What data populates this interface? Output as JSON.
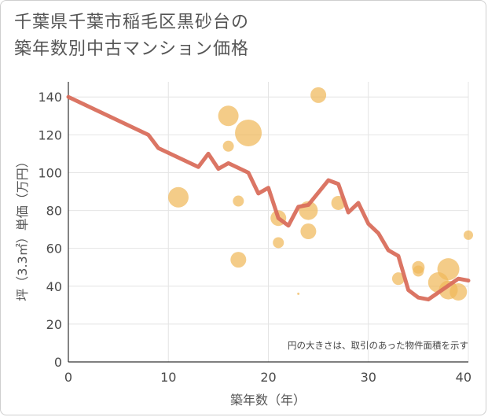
{
  "title_lines": [
    "千葉県千葉市稲毛区黒砂台の",
    "築年数別中古マンション価格"
  ],
  "note": "円の大きさは、取引のあった物件面積を示す",
  "colors": {
    "line": "#d96e5c",
    "bubble": "#f0b85a",
    "grid": "#e4e4e4"
  },
  "chart_data": {
    "type": "scatter",
    "xlabel": "築年数（年）",
    "ylabel": "坪（3.3㎡）単価（万円）",
    "xlim": [
      0,
      40
    ],
    "ylim": [
      0,
      148
    ],
    "xticks": [
      0,
      10,
      20,
      30,
      40
    ],
    "yticks": [
      0,
      20,
      40,
      60,
      80,
      100,
      120,
      140
    ],
    "grid": true,
    "bubbles": [
      {
        "x": 16,
        "y": 130,
        "size": 13
      },
      {
        "x": 18,
        "y": 121,
        "size": 17
      },
      {
        "x": 25,
        "y": 141,
        "size": 10
      },
      {
        "x": 16,
        "y": 114,
        "size": 7
      },
      {
        "x": 11,
        "y": 87,
        "size": 13
      },
      {
        "x": 17,
        "y": 85,
        "size": 7
      },
      {
        "x": 21,
        "y": 76,
        "size": 10
      },
      {
        "x": 24,
        "y": 80,
        "size": 12
      },
      {
        "x": 27,
        "y": 84,
        "size": 9
      },
      {
        "x": 24,
        "y": 69,
        "size": 10
      },
      {
        "x": 21,
        "y": 63,
        "size": 7
      },
      {
        "x": 17,
        "y": 54,
        "size": 10
      },
      {
        "x": 23,
        "y": 36,
        "size": 1.5
      },
      {
        "x": 33,
        "y": 44,
        "size": 8
      },
      {
        "x": 35,
        "y": 50,
        "size": 8
      },
      {
        "x": 35,
        "y": 48,
        "size": 7
      },
      {
        "x": 37,
        "y": 42,
        "size": 13
      },
      {
        "x": 38,
        "y": 49,
        "size": 14
      },
      {
        "x": 38,
        "y": 38,
        "size": 12
      },
      {
        "x": 39,
        "y": 37,
        "size": 11
      },
      {
        "x": 40,
        "y": 67,
        "size": 6
      }
    ],
    "trend": {
      "x": [
        0,
        8,
        9,
        13,
        14,
        15,
        16,
        18,
        19,
        20,
        21,
        22,
        23,
        24,
        26,
        27,
        28,
        29,
        30,
        31,
        32,
        33,
        34,
        35,
        36,
        39,
        40
      ],
      "y": [
        140,
        120,
        113,
        103,
        110,
        102,
        105,
        100,
        89,
        92,
        76,
        72,
        82,
        83,
        96,
        94,
        79,
        84,
        73,
        68,
        59,
        56,
        38,
        34,
        33,
        44,
        43
      ]
    }
  }
}
